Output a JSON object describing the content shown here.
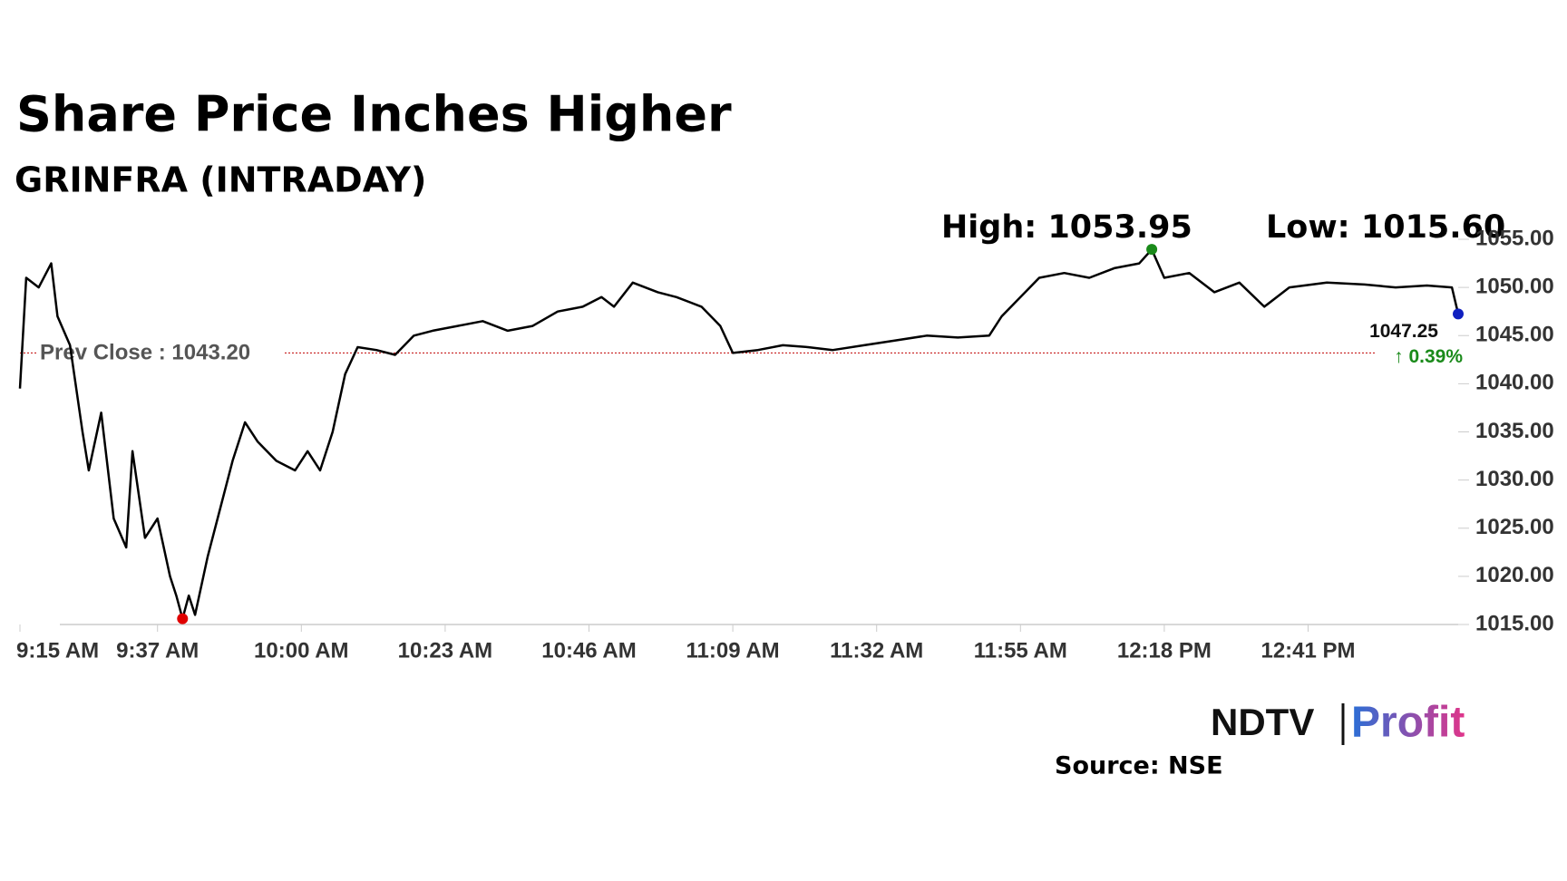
{
  "chart_data": {
    "type": "line",
    "title": "Share Price Inches Higher",
    "subtitle": "GRINFRA (INTRADAY)",
    "x": [
      "9:15 AM",
      "9:16 AM",
      "9:18 AM",
      "9:20 AM",
      "9:21 AM",
      "9:23 AM",
      "9:25 AM",
      "9:26 AM",
      "9:28 AM",
      "9:30 AM",
      "9:32 AM",
      "9:33 AM",
      "9:35 AM",
      "9:37 AM",
      "9:39 AM",
      "9:40 AM",
      "9:41 AM",
      "9:42 AM",
      "9:43 AM",
      "9:45 AM",
      "9:47 AM",
      "9:49 AM",
      "9:51 AM",
      "9:53 AM",
      "9:56 AM",
      "9:59 AM",
      "10:01 AM",
      "10:03 AM",
      "10:05 AM",
      "10:07 AM",
      "10:09 AM",
      "10:12 AM",
      "10:15 AM",
      "10:18 AM",
      "10:21 AM",
      "10:25 AM",
      "10:29 AM",
      "10:33 AM",
      "10:37 AM",
      "10:41 AM",
      "10:45 AM",
      "10:48 AM",
      "10:50 AM",
      "10:53 AM",
      "10:57 AM",
      "11:00 AM",
      "11:04 AM",
      "11:07 AM",
      "11:09 AM",
      "11:13 AM",
      "11:17 AM",
      "11:21 AM",
      "11:25 AM",
      "11:30 AM",
      "11:35 AM",
      "11:40 AM",
      "11:45 AM",
      "11:50 AM",
      "11:52 AM",
      "11:55 AM",
      "11:58 AM",
      "12:02 PM",
      "12:06 PM",
      "12:10 PM",
      "12:14 PM",
      "12:16 PM",
      "12:18 PM",
      "12:22 PM",
      "12:26 PM",
      "12:30 PM",
      "12:34 PM",
      "12:38 PM",
      "12:44 PM",
      "12:50 PM",
      "12:55 PM",
      "1:00 PM",
      "1:04 PM",
      "1:05 PM"
    ],
    "series": [
      {
        "name": "GRINFRA",
        "color": "#000000",
        "values": [
          1039.5,
          1051,
          1050,
          1052.5,
          1047,
          1044,
          1035,
          1031,
          1037,
          1026,
          1023,
          1033,
          1024,
          1026,
          1020,
          1018,
          1015.6,
          1018,
          1016,
          1022,
          1027,
          1032,
          1036,
          1034,
          1032,
          1031,
          1033,
          1031,
          1035,
          1041,
          1043.8,
          1043.5,
          1043,
          1045,
          1045.5,
          1046,
          1046.5,
          1045.5,
          1046,
          1047.5,
          1048,
          1049,
          1048,
          1050.5,
          1049.5,
          1049,
          1048,
          1046,
          1043.2,
          1043.5,
          1044,
          1043.8,
          1043.5,
          1044,
          1044.5,
          1045,
          1044.8,
          1045,
          1047,
          1049,
          1051,
          1051.5,
          1051,
          1052,
          1052.5,
          1053.95,
          1051,
          1051.5,
          1049.5,
          1050.5,
          1048,
          1050,
          1050.5,
          1050.3,
          1050,
          1050.2,
          1050,
          1047.25
        ]
      }
    ],
    "xlim": [
      "9:15 AM",
      "1:05 PM"
    ],
    "xticks": [
      "9:15 AM",
      "9:37 AM",
      "10:00 AM",
      "10:23 AM",
      "10:46 AM",
      "11:09 AM",
      "11:32 AM",
      "11:55 AM",
      "12:18 PM",
      "12:41 PM"
    ],
    "ylim": [
      1015,
      1055
    ],
    "yticks": [
      {
        "value": 1015,
        "label": "1015.00"
      },
      {
        "value": 1020,
        "label": "1020.00"
      },
      {
        "value": 1025,
        "label": "1025.00"
      },
      {
        "value": 1030,
        "label": "1030.00"
      },
      {
        "value": 1035,
        "label": "1035.00"
      },
      {
        "value": 1040,
        "label": "1040.00"
      },
      {
        "value": 1045,
        "label": "1045.00"
      },
      {
        "value": 1050,
        "label": "1050.00"
      },
      {
        "value": 1055,
        "label": "1055.00"
      }
    ],
    "prev_close": {
      "value": 1043.2,
      "label": "Prev Close : 1043.20",
      "color": "#c00000"
    },
    "high": {
      "x": "12:16 PM",
      "value": 1053.95,
      "label": "High: 1053.95",
      "color": "#1a8a1a"
    },
    "low": {
      "x": "9:41 AM",
      "value": 1015.6,
      "label": "Low: 1015.60",
      "color": "#e00000"
    },
    "last": {
      "x": "1:05 PM",
      "value": 1047.25,
      "label": "1047.25",
      "color": "#1020c0"
    },
    "change": {
      "value": 0.39,
      "label": "↑ 0.39%"
    },
    "logo": [
      "NDTV",
      "Profit"
    ],
    "source": "Source: NSE"
  }
}
